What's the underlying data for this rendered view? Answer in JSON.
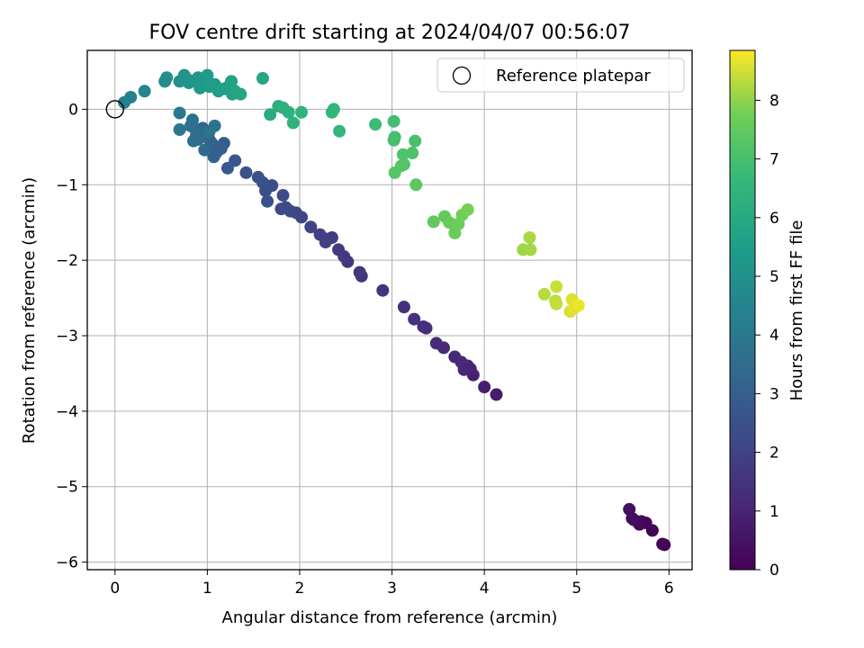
{
  "chart_data": {
    "type": "scatter",
    "title": "FOV centre drift starting at 2024/04/07 00:56:07",
    "xlabel": "Angular distance from reference (arcmin)",
    "ylabel": "Rotation from reference (arcmin)",
    "xlim": [
      -0.3,
      6.25
    ],
    "ylim": [
      -6.1,
      0.78
    ],
    "xticks": [
      0,
      1,
      2,
      3,
      4,
      5,
      6
    ],
    "yticks": [
      0,
      -1,
      -2,
      -3,
      -4,
      -5,
      -6
    ],
    "xtick_labels": [
      "0",
      "1",
      "2",
      "3",
      "4",
      "5",
      "6"
    ],
    "ytick_labels": [
      "0",
      "−1",
      "−2",
      "−3",
      "−4",
      "−5",
      "−6"
    ],
    "grid": true,
    "colormap": "viridis",
    "colorbar": {
      "label": "Hours from first FF file",
      "range": [
        0,
        8.85
      ],
      "ticks": [
        0,
        1,
        2,
        3,
        4,
        5,
        6,
        7,
        8
      ],
      "tick_labels": [
        "0",
        "1",
        "2",
        "3",
        "4",
        "5",
        "6",
        "7",
        "8"
      ]
    },
    "legend": {
      "position": "top-right",
      "entries": [
        {
          "label": "Reference platepar",
          "marker": "open-circle"
        }
      ]
    },
    "reference_point": [
      0,
      0
    ],
    "points": [
      [
        5.95,
        -5.77,
        0.02
      ],
      [
        5.93,
        -5.76,
        0.05
      ],
      [
        5.82,
        -5.58,
        0.1
      ],
      [
        5.75,
        -5.48,
        0.15
      ],
      [
        5.7,
        -5.46,
        0.2
      ],
      [
        5.68,
        -5.5,
        0.25
      ],
      [
        5.62,
        -5.44,
        0.3
      ],
      [
        5.6,
        -5.42,
        0.35
      ],
      [
        5.57,
        -5.3,
        0.4
      ],
      [
        4.13,
        -3.78,
        0.8
      ],
      [
        4.0,
        -3.68,
        0.85
      ],
      [
        3.88,
        -3.52,
        0.9
      ],
      [
        3.85,
        -3.44,
        0.95
      ],
      [
        3.82,
        -3.4,
        1.0
      ],
      [
        3.78,
        -3.45,
        1.05
      ],
      [
        3.75,
        -3.35,
        1.1
      ],
      [
        3.68,
        -3.28,
        1.15
      ],
      [
        3.56,
        -3.16,
        1.2
      ],
      [
        3.48,
        -3.1,
        1.25
      ],
      [
        3.37,
        -2.9,
        1.3
      ],
      [
        3.34,
        -2.88,
        1.35
      ],
      [
        3.24,
        -2.78,
        1.4
      ],
      [
        3.13,
        -2.62,
        1.45
      ],
      [
        2.9,
        -2.4,
        1.5
      ],
      [
        2.67,
        -2.21,
        1.55
      ],
      [
        2.65,
        -2.16,
        1.6
      ],
      [
        2.52,
        -2.02,
        1.65
      ],
      [
        2.48,
        -1.95,
        1.7
      ],
      [
        2.42,
        -1.86,
        1.75
      ],
      [
        2.35,
        -1.7,
        1.8
      ],
      [
        2.3,
        -1.72,
        1.85
      ],
      [
        2.28,
        -1.76,
        1.9
      ],
      [
        2.22,
        -1.66,
        1.95
      ],
      [
        2.12,
        -1.56,
        2.0
      ],
      [
        2.02,
        -1.43,
        2.05
      ],
      [
        1.96,
        -1.37,
        2.1
      ],
      [
        1.9,
        -1.35,
        2.15
      ],
      [
        1.85,
        -1.3,
        2.2
      ],
      [
        1.8,
        -1.32,
        2.25
      ],
      [
        1.82,
        -1.14,
        2.3
      ],
      [
        1.7,
        -1.01,
        2.35
      ],
      [
        1.63,
        -1.08,
        2.4
      ],
      [
        1.65,
        -1.22,
        2.45
      ],
      [
        1.6,
        -0.97,
        2.5
      ],
      [
        1.55,
        -0.9,
        2.55
      ],
      [
        1.42,
        -0.84,
        2.6
      ],
      [
        1.3,
        -0.68,
        2.7
      ],
      [
        1.22,
        -0.78,
        2.8
      ],
      [
        1.18,
        -0.45,
        2.9
      ],
      [
        1.15,
        -0.52,
        3.0
      ],
      [
        1.1,
        -0.57,
        3.05
      ],
      [
        1.07,
        -0.63,
        3.1
      ],
      [
        1.05,
        -0.45,
        3.15
      ],
      [
        1.02,
        -0.4,
        3.2
      ],
      [
        0.98,
        -0.35,
        3.25
      ],
      [
        0.95,
        -0.25,
        3.3
      ],
      [
        0.93,
        -0.3,
        3.35
      ],
      [
        0.97,
        -0.54,
        3.4
      ],
      [
        0.9,
        -0.4,
        3.45
      ],
      [
        0.88,
        -0.35,
        3.5
      ],
      [
        0.86,
        -0.25,
        3.55
      ],
      [
        0.85,
        -0.42,
        3.6
      ],
      [
        0.82,
        -0.22,
        3.65
      ],
      [
        0.84,
        -0.14,
        3.7
      ],
      [
        1.02,
        -0.3,
        3.75
      ],
      [
        1.08,
        -0.22,
        3.8
      ],
      [
        0.7,
        -0.27,
        3.9
      ],
      [
        0.7,
        -0.05,
        4.0
      ],
      [
        0.1,
        0.09,
        4.3
      ],
      [
        0.17,
        0.16,
        4.4
      ],
      [
        0.32,
        0.24,
        4.6
      ],
      [
        0.54,
        0.37,
        4.8
      ],
      [
        0.56,
        0.42,
        4.9
      ],
      [
        0.7,
        0.37,
        5.0
      ],
      [
        0.75,
        0.45,
        5.05
      ],
      [
        0.78,
        0.4,
        5.1
      ],
      [
        0.8,
        0.35,
        5.15
      ],
      [
        0.86,
        0.38,
        5.2
      ],
      [
        0.9,
        0.42,
        5.25
      ],
      [
        0.92,
        0.28,
        5.3
      ],
      [
        0.98,
        0.38,
        5.35
      ],
      [
        1.0,
        0.45,
        5.4
      ],
      [
        1.02,
        0.3,
        5.45
      ],
      [
        1.08,
        0.33,
        5.5
      ],
      [
        1.12,
        0.24,
        5.55
      ],
      [
        1.18,
        0.27,
        5.6
      ],
      [
        1.23,
        0.3,
        5.65
      ],
      [
        1.26,
        0.37,
        5.7
      ],
      [
        1.3,
        0.24,
        5.75
      ],
      [
        1.27,
        0.2,
        5.8
      ],
      [
        1.36,
        0.2,
        5.85
      ],
      [
        1.6,
        0.41,
        5.9
      ],
      [
        1.68,
        -0.07,
        6.1
      ],
      [
        1.77,
        0.04,
        6.2
      ],
      [
        1.82,
        0.02,
        6.3
      ],
      [
        1.88,
        -0.04,
        6.35
      ],
      [
        1.93,
        -0.18,
        6.4
      ],
      [
        2.02,
        -0.04,
        6.45
      ],
      [
        2.35,
        -0.04,
        6.5
      ],
      [
        2.37,
        0.0,
        6.55
      ],
      [
        2.43,
        -0.29,
        6.6
      ],
      [
        2.82,
        -0.2,
        6.8
      ],
      [
        3.02,
        -0.16,
        6.9
      ],
      [
        3.03,
        -0.37,
        6.95
      ],
      [
        3.02,
        -0.41,
        7.0
      ],
      [
        3.25,
        -0.42,
        7.05
      ],
      [
        3.22,
        -0.58,
        7.1
      ],
      [
        3.12,
        -0.6,
        7.15
      ],
      [
        3.13,
        -0.73,
        7.2
      ],
      [
        3.1,
        -0.75,
        7.25
      ],
      [
        3.03,
        -0.84,
        7.3
      ],
      [
        3.26,
        -1.0,
        7.35
      ],
      [
        3.45,
        -1.49,
        7.5
      ],
      [
        3.57,
        -1.42,
        7.55
      ],
      [
        3.62,
        -1.5,
        7.6
      ],
      [
        3.68,
        -1.64,
        7.65
      ],
      [
        3.72,
        -1.52,
        7.7
      ],
      [
        3.76,
        -1.4,
        7.75
      ],
      [
        3.82,
        -1.33,
        7.8
      ],
      [
        4.42,
        -1.86,
        8.1
      ],
      [
        4.5,
        -1.86,
        8.15
      ],
      [
        4.49,
        -1.7,
        8.2
      ],
      [
        4.65,
        -2.45,
        8.3
      ],
      [
        4.77,
        -2.54,
        8.35
      ],
      [
        4.78,
        -2.58,
        8.4
      ],
      [
        4.78,
        -2.35,
        8.45
      ],
      [
        4.93,
        -2.68,
        8.55
      ],
      [
        4.95,
        -2.52,
        8.6
      ],
      [
        4.97,
        -2.64,
        8.65
      ],
      [
        5.02,
        -2.6,
        8.7
      ]
    ]
  }
}
